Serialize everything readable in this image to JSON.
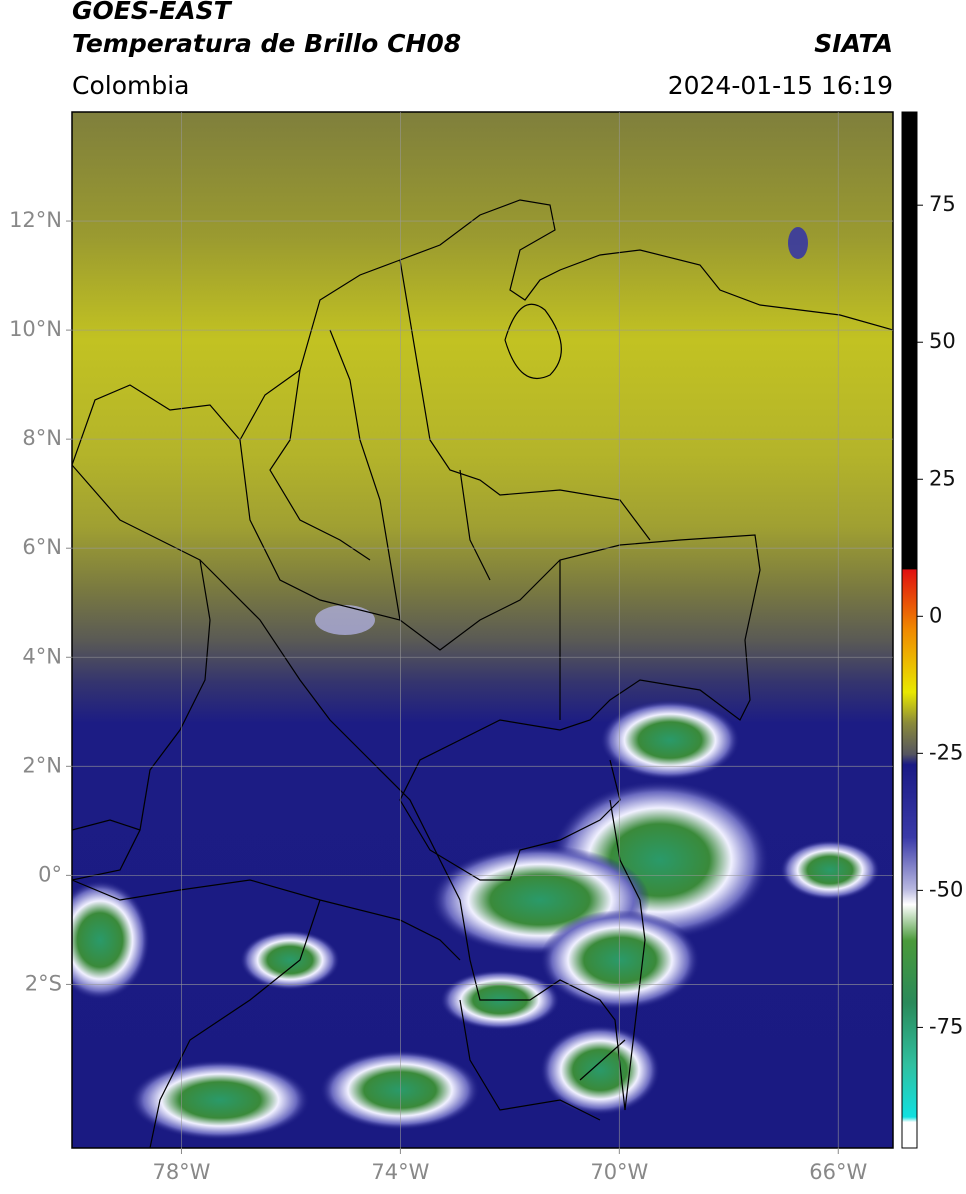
{
  "header": {
    "title": "GOES-EAST",
    "subtitle": "Temperatura de Brillo CH08",
    "source": "SIATA",
    "region": "Colombia",
    "datetime": "2024-01-15 16:19"
  },
  "map": {
    "xlim": [
      -80,
      -65
    ],
    "ylim": [
      -5,
      14
    ],
    "xticks": [
      {
        "value": -78,
        "label": "78°W"
      },
      {
        "value": -74,
        "label": "74°W"
      },
      {
        "value": -70,
        "label": "70°W"
      },
      {
        "value": -66,
        "label": "66°W"
      }
    ],
    "yticks": [
      {
        "value": 12,
        "label": "12°N"
      },
      {
        "value": 10,
        "label": "10°N"
      },
      {
        "value": 8,
        "label": "8°N"
      },
      {
        "value": 6,
        "label": "6°N"
      },
      {
        "value": 4,
        "label": "4°N"
      },
      {
        "value": 2,
        "label": "2°N"
      },
      {
        "value": 0,
        "label": "0°"
      },
      {
        "value": -2,
        "label": "2°S"
      }
    ],
    "grid": true
  },
  "colorbar": {
    "lim": [
      -97,
      92
    ],
    "ticks": [
      75,
      50,
      25,
      0,
      -25,
      -50,
      -75
    ]
  }
}
